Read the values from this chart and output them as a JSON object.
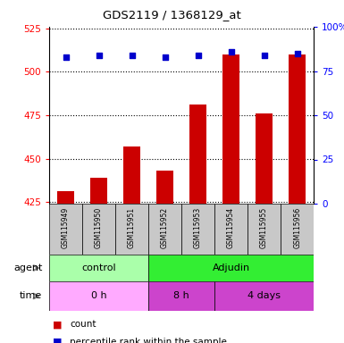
{
  "title": "GDS2119 / 1368129_at",
  "samples": [
    "GSM115949",
    "GSM115950",
    "GSM115951",
    "GSM115952",
    "GSM115953",
    "GSM115954",
    "GSM115955",
    "GSM115956"
  ],
  "counts": [
    431,
    439,
    457,
    443,
    481,
    510,
    476,
    510
  ],
  "percentile_ranks": [
    83,
    84,
    84,
    83,
    84,
    86,
    84,
    85
  ],
  "ylim_left": [
    424,
    526
  ],
  "ylim_right": [
    0,
    100
  ],
  "yticks_left": [
    425,
    450,
    475,
    500,
    525
  ],
  "yticks_right": [
    0,
    25,
    50,
    75,
    100
  ],
  "agent_groups": [
    {
      "label": "control",
      "start": 0,
      "end": 3,
      "color": "#AAFFAA"
    },
    {
      "label": "Adjudin",
      "start": 3,
      "end": 8,
      "color": "#33DD33"
    }
  ],
  "time_groups": [
    {
      "label": "0 h",
      "start": 0,
      "end": 3,
      "color": "#FFAAFF"
    },
    {
      "label": "8 h",
      "start": 3,
      "end": 5,
      "color": "#DD44DD"
    },
    {
      "label": "4 days",
      "start": 5,
      "end": 8,
      "color": "#DD44DD"
    }
  ],
  "bar_color": "#CC0000",
  "dot_color": "#0000CC",
  "bar_width": 0.5,
  "legend_count_color": "#CC0000",
  "legend_dot_color": "#0000CC"
}
